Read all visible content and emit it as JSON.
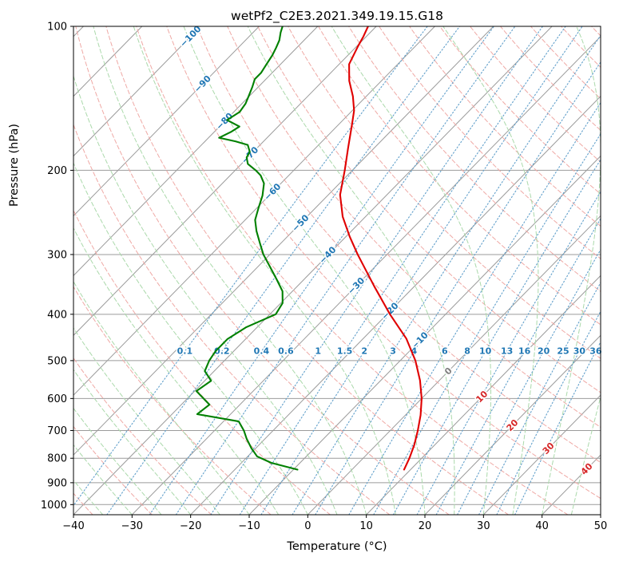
{
  "figure": {
    "background": "#ffffff"
  },
  "chart_data": {
    "type": "line",
    "chart_kind": "skew-t-log-p",
    "title": "wetPf2_C2E3.2021.349.19.15.G18",
    "xlabel": "Temperature (°C)",
    "ylabel": "Pressure (hPa)",
    "xlim": [
      -40,
      50
    ],
    "ylim": [
      1050,
      100
    ],
    "x_ticks": [
      -40,
      -30,
      -20,
      -10,
      0,
      10,
      20,
      30,
      40,
      50
    ],
    "y_ticks": [
      100,
      200,
      300,
      400,
      500,
      600,
      700,
      800,
      900,
      1000
    ],
    "skew_degC_per_decade": 80,
    "grid": true,
    "legend": "none",
    "isotherms": {
      "start": -120,
      "end": 50,
      "step": 10,
      "labels": [
        {
          "value": -100,
          "pressure": 105
        },
        {
          "value": -90,
          "pressure": 132
        },
        {
          "value": -80,
          "pressure": 158
        },
        {
          "value": -70,
          "pressure": 186
        },
        {
          "value": -60,
          "pressure": 222
        },
        {
          "value": -50,
          "pressure": 258
        },
        {
          "value": -40,
          "pressure": 301
        },
        {
          "value": -30,
          "pressure": 349
        },
        {
          "value": -20,
          "pressure": 394
        },
        {
          "value": -10,
          "pressure": 454
        },
        {
          "value": 0,
          "pressure": 526
        },
        {
          "value": 10,
          "pressure": 595
        },
        {
          "value": 20,
          "pressure": 683
        },
        {
          "value": 30,
          "pressure": 763
        },
        {
          "value": 40,
          "pressure": 843
        }
      ]
    },
    "dry_adiabats": {
      "start": -40,
      "end": 200,
      "step": 10
    },
    "moist_adiabats": {
      "start": -40,
      "end": 45,
      "step": 5
    },
    "mixing_ratios_g_per_kg": [
      0.1,
      0.2,
      0.4,
      0.6,
      1,
      1.5,
      2,
      3,
      4,
      6,
      8,
      10,
      13,
      16,
      20,
      25,
      30,
      36
    ],
    "mixing_ratio_label_pressure_hPa": 478,
    "series": [
      {
        "name": "temperature",
        "color": "#e00000",
        "points": [
          [
            845,
            8.9
          ],
          [
            800,
            7.9
          ],
          [
            750,
            6.5
          ],
          [
            700,
            4.7
          ],
          [
            650,
            2.6
          ],
          [
            600,
            0.0
          ],
          [
            550,
            -3.3
          ],
          [
            500,
            -7.4
          ],
          [
            450,
            -12.6
          ],
          [
            400,
            -19.5
          ],
          [
            350,
            -26.8
          ],
          [
            300,
            -35.0
          ],
          [
            275,
            -39.4
          ],
          [
            250,
            -43.9
          ],
          [
            225,
            -48.0
          ],
          [
            200,
            -51.3
          ],
          [
            180,
            -54.4
          ],
          [
            160,
            -57.8
          ],
          [
            150,
            -59.7
          ],
          [
            140,
            -62.3
          ],
          [
            130,
            -65.5
          ],
          [
            120,
            -68.3
          ],
          [
            110,
            -69.8
          ],
          [
            105,
            -70.5
          ],
          [
            100,
            -71.4
          ]
        ]
      },
      {
        "name": "dewpoint",
        "color": "#008000",
        "points": [
          [
            845,
            -9.3
          ],
          [
            818,
            -14.9
          ],
          [
            793,
            -18.4
          ],
          [
            763,
            -20.7
          ],
          [
            729,
            -23.1
          ],
          [
            700,
            -25.0
          ],
          [
            670,
            -27.4
          ],
          [
            647,
            -35.7
          ],
          [
            618,
            -35.2
          ],
          [
            579,
            -39.7
          ],
          [
            551,
            -38.9
          ],
          [
            526,
            -41.6
          ],
          [
            500,
            -42.6
          ],
          [
            478,
            -43.1
          ],
          [
            451,
            -43.1
          ],
          [
            426,
            -41.9
          ],
          [
            400,
            -39.0
          ],
          [
            379,
            -39.7
          ],
          [
            358,
            -41.7
          ],
          [
            338,
            -44.7
          ],
          [
            319,
            -47.8
          ],
          [
            300,
            -51.1
          ],
          [
            284,
            -53.6
          ],
          [
            268,
            -56.2
          ],
          [
            254,
            -58.3
          ],
          [
            239,
            -59.8
          ],
          [
            226,
            -61.1
          ],
          [
            213,
            -62.9
          ],
          [
            205,
            -64.8
          ],
          [
            200,
            -66.5
          ],
          [
            194,
            -68.9
          ],
          [
            188,
            -70.2
          ],
          [
            183,
            -70.6
          ],
          [
            177,
            -72.1
          ],
          [
            174,
            -74.8
          ],
          [
            171,
            -78.2
          ],
          [
            166,
            -77.1
          ],
          [
            162,
            -76.6
          ],
          [
            157,
            -79.8
          ],
          [
            151,
            -79.0
          ],
          [
            145,
            -79.4
          ],
          [
            140,
            -80.1
          ],
          [
            134,
            -81.0
          ],
          [
            129,
            -81.9
          ],
          [
            125,
            -81.9
          ],
          [
            120,
            -82.4
          ],
          [
            115,
            -82.9
          ],
          [
            111,
            -83.5
          ],
          [
            107,
            -84.2
          ],
          [
            103,
            -85.3
          ],
          [
            100,
            -86.0
          ]
        ]
      }
    ],
    "colors": {
      "temperature_line": "#e00000",
      "dewpoint_line": "#008000",
      "isotherm_grid": "#9b9b9b",
      "pressure_grid": "#9b9b9b",
      "dry_adiabat": "#efa9a5",
      "moist_adiabat": "#abd9ab",
      "mixing_ratio_line": "#62a0cb",
      "isotherm_label_negative": "#2077b4",
      "isotherm_label_zero": "#7f7f7f",
      "isotherm_label_positive": "#d62728",
      "mixing_ratio_label": "#1f77b4",
      "axis": "#000000"
    }
  }
}
